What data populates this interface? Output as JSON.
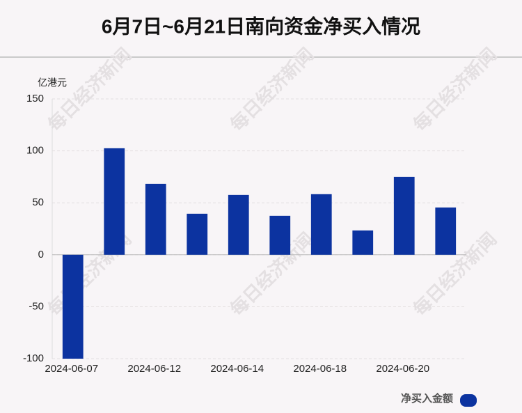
{
  "chart_data": {
    "type": "bar",
    "title": "6月7日~6月21日南向资金净买入情况",
    "y_label": "亿港元",
    "watermark": "每日经济新闻",
    "categories": [
      "2024-06-07",
      null,
      "2024-06-12",
      null,
      "2024-06-14",
      null,
      "2024-06-18",
      null,
      "2024-06-20",
      null
    ],
    "series": [
      {
        "name": "净买入金额",
        "color": "#0c33a0",
        "values": [
          -100,
          102.5,
          68.3,
          39.5,
          57.6,
          37.5,
          58.3,
          23.4,
          75,
          45.5
        ]
      }
    ],
    "ylim": [
      -100,
      150
    ],
    "yticks": [
      -100,
      -50,
      0,
      50,
      100,
      150
    ],
    "grid": true
  }
}
